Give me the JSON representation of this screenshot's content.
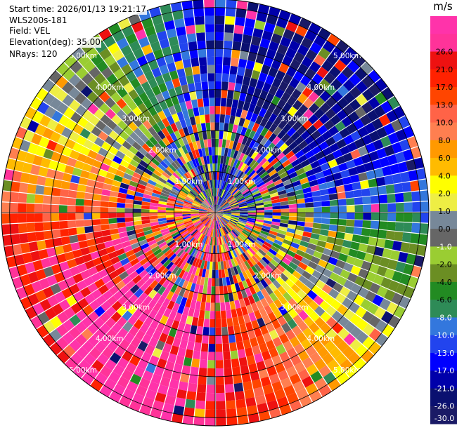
{
  "info": {
    "start_time": "Start time: 2026/01/13 19:21:17",
    "site": "WLS200s-181",
    "field": "Field: VEL",
    "elevation": "Elevation(deg): 35.00",
    "nrays": "NRays: 120"
  },
  "chart_data": {
    "type": "heatmap",
    "projection": "polar-ppi",
    "field": "VEL",
    "unit_label": "m/s",
    "n_rays": 120,
    "max_range_km": 5.2,
    "range_rings_km": [
      1,
      2,
      3,
      4,
      5
    ],
    "ring_labels": [
      "1.00km",
      "2.00km",
      "3.00km",
      "4.00km",
      "5.00km"
    ],
    "colorbar": {
      "ticks": [
        "-30.0",
        "-26.0",
        "-21.0",
        "-17.0",
        "-13.0",
        "-10.0",
        "-8.0",
        "-6.0",
        "-4.0",
        "-2.0",
        "-1.0",
        "0.0",
        "1.0",
        "2.0",
        "4.0",
        "6.0",
        "8.0",
        "10.0",
        "13.0",
        "17.0",
        "21.0",
        "26.0"
      ],
      "colors": [
        "#1a1a66",
        "#0a1070",
        "#0000aa",
        "#0000ff",
        "#2244ee",
        "#3377dd",
        "#2e8b57",
        "#228b22",
        "#6b8e23",
        "#9acd32",
        "#666666",
        "#778899",
        "#eeee44",
        "#ffff00",
        "#ffbb00",
        "#ff9900",
        "#ff7f50",
        "#ff6347",
        "#ff4500",
        "#ff2200",
        "#ee1111",
        "#ff3399",
        "#ff33aa"
      ]
    },
    "pattern": "dealiased wind: approaching (negative, blue) toward the north/north-east, receding (positive, red) toward the south/south-east; noisy near the radar"
  }
}
